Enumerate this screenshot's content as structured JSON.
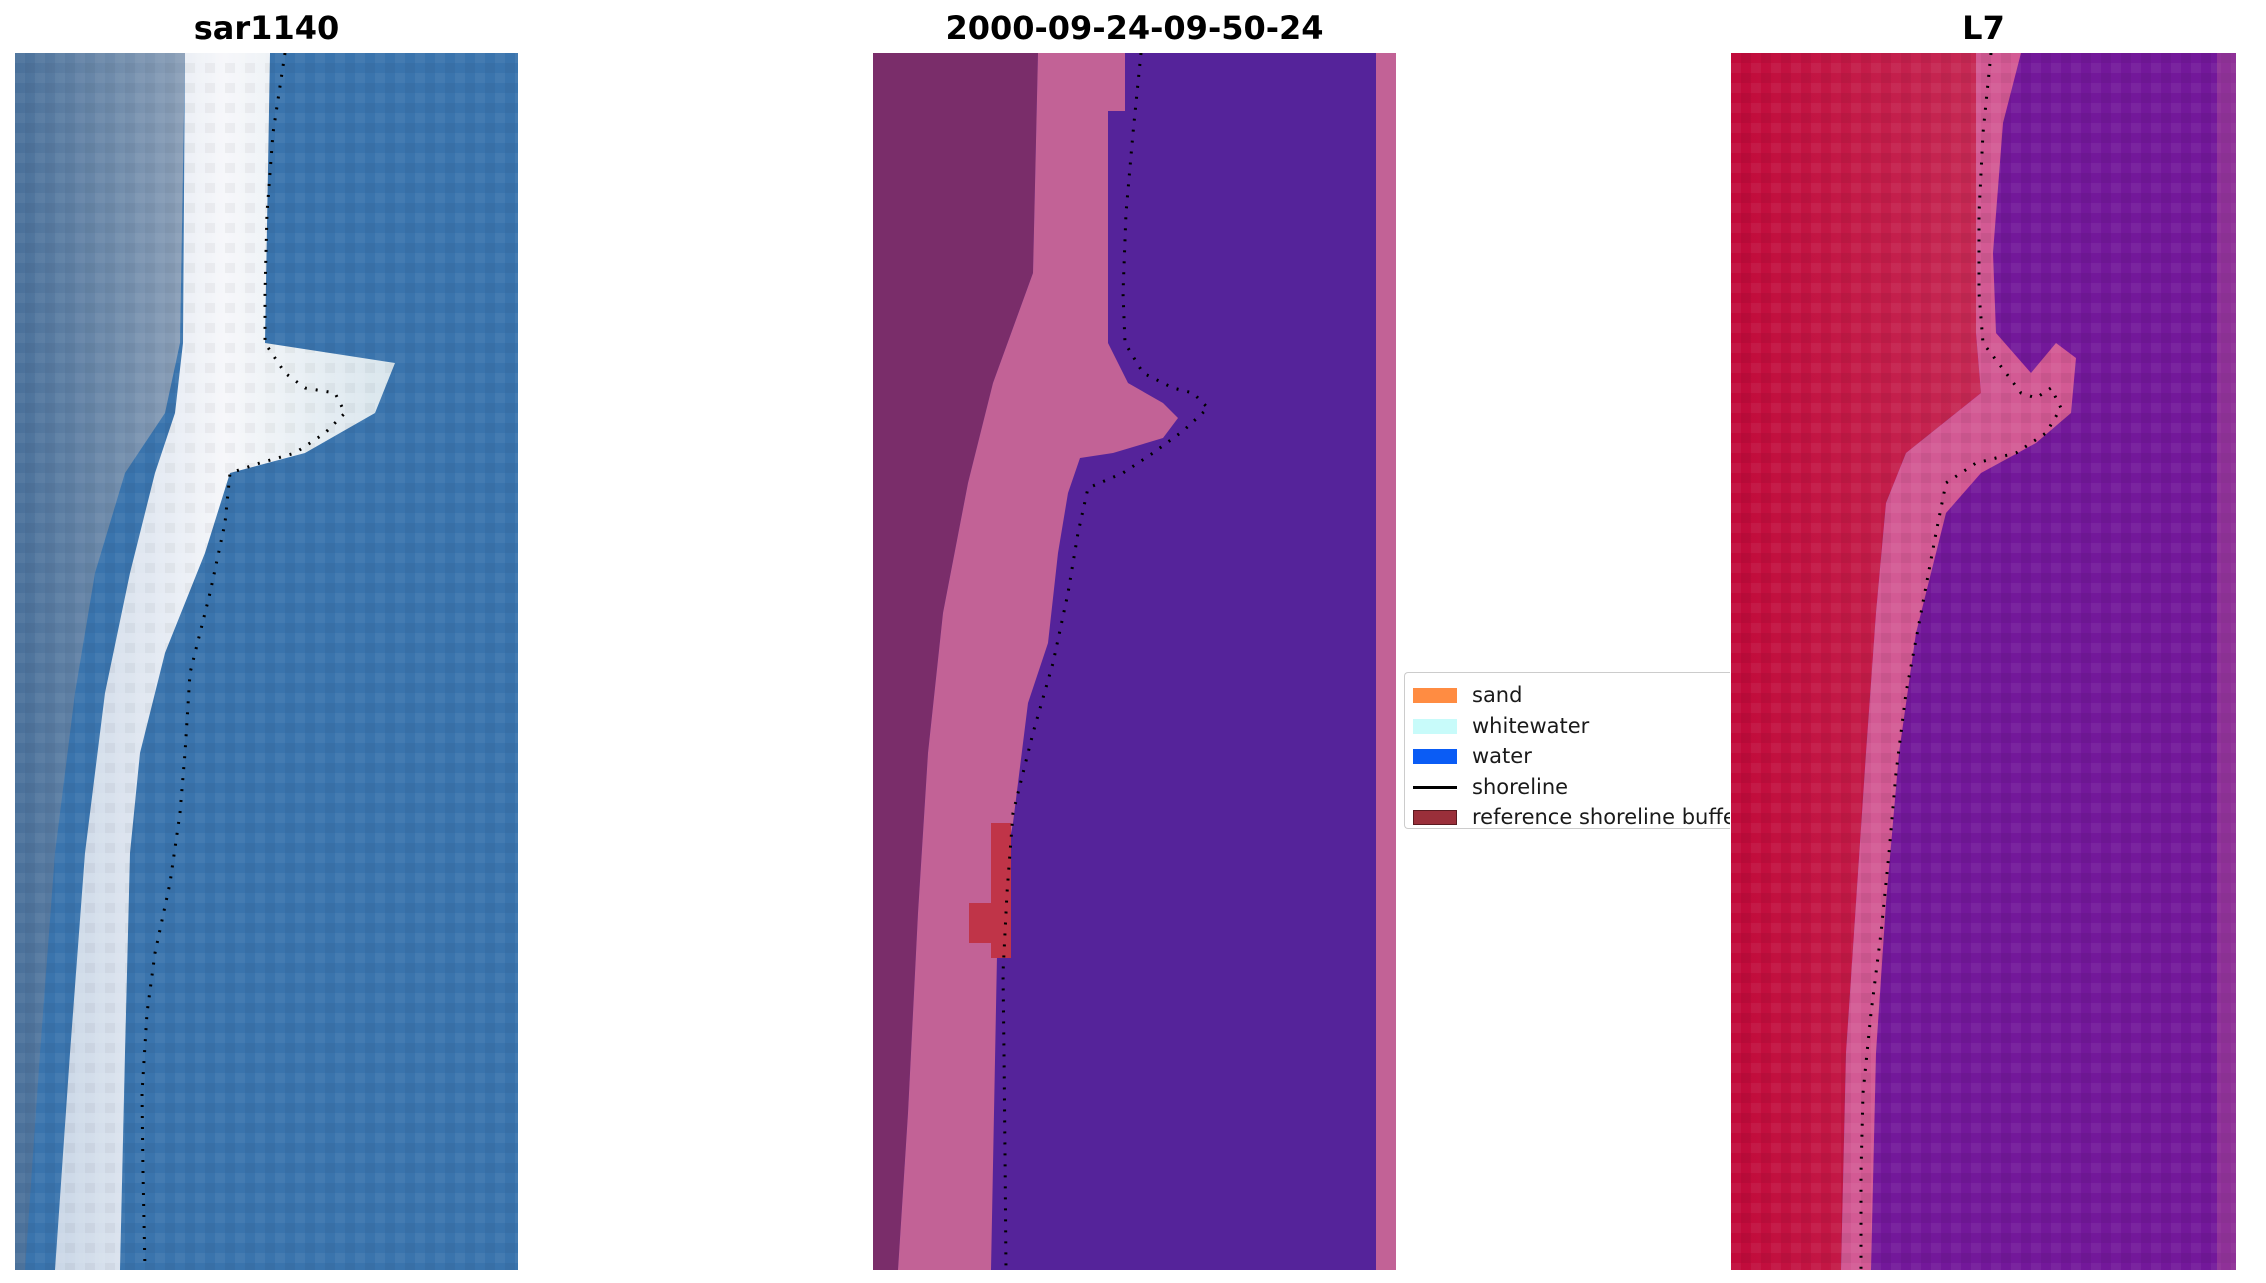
{
  "panels": [
    {
      "title": "sar1140"
    },
    {
      "title": "2000-09-24-09-50-24"
    },
    {
      "title": "L7"
    }
  ],
  "legend": {
    "items": [
      {
        "label": "sand",
        "color": "#ff8c42",
        "kind": "swatch"
      },
      {
        "label": "whitewater",
        "color": "#c8fbfa",
        "kind": "swatch"
      },
      {
        "label": "water",
        "color": "#0a5cf5",
        "kind": "swatch"
      },
      {
        "label": "shoreline",
        "color": "#000000",
        "kind": "line"
      },
      {
        "label": "reference shoreline buffer",
        "color": "#9a2f3a",
        "kind": "swatch"
      }
    ]
  },
  "colors": {
    "rgb_water": "#3a74ad",
    "rgb_sand": "#e6eef4",
    "classified_water": "#55239a",
    "classified_land": "#7a2d6a",
    "classified_sand": "#c26296",
    "classified_buffer": "#c03448",
    "swir_land": "#c31a48",
    "swir_water": "#73189a",
    "swir_beach": "#d35a94"
  }
}
